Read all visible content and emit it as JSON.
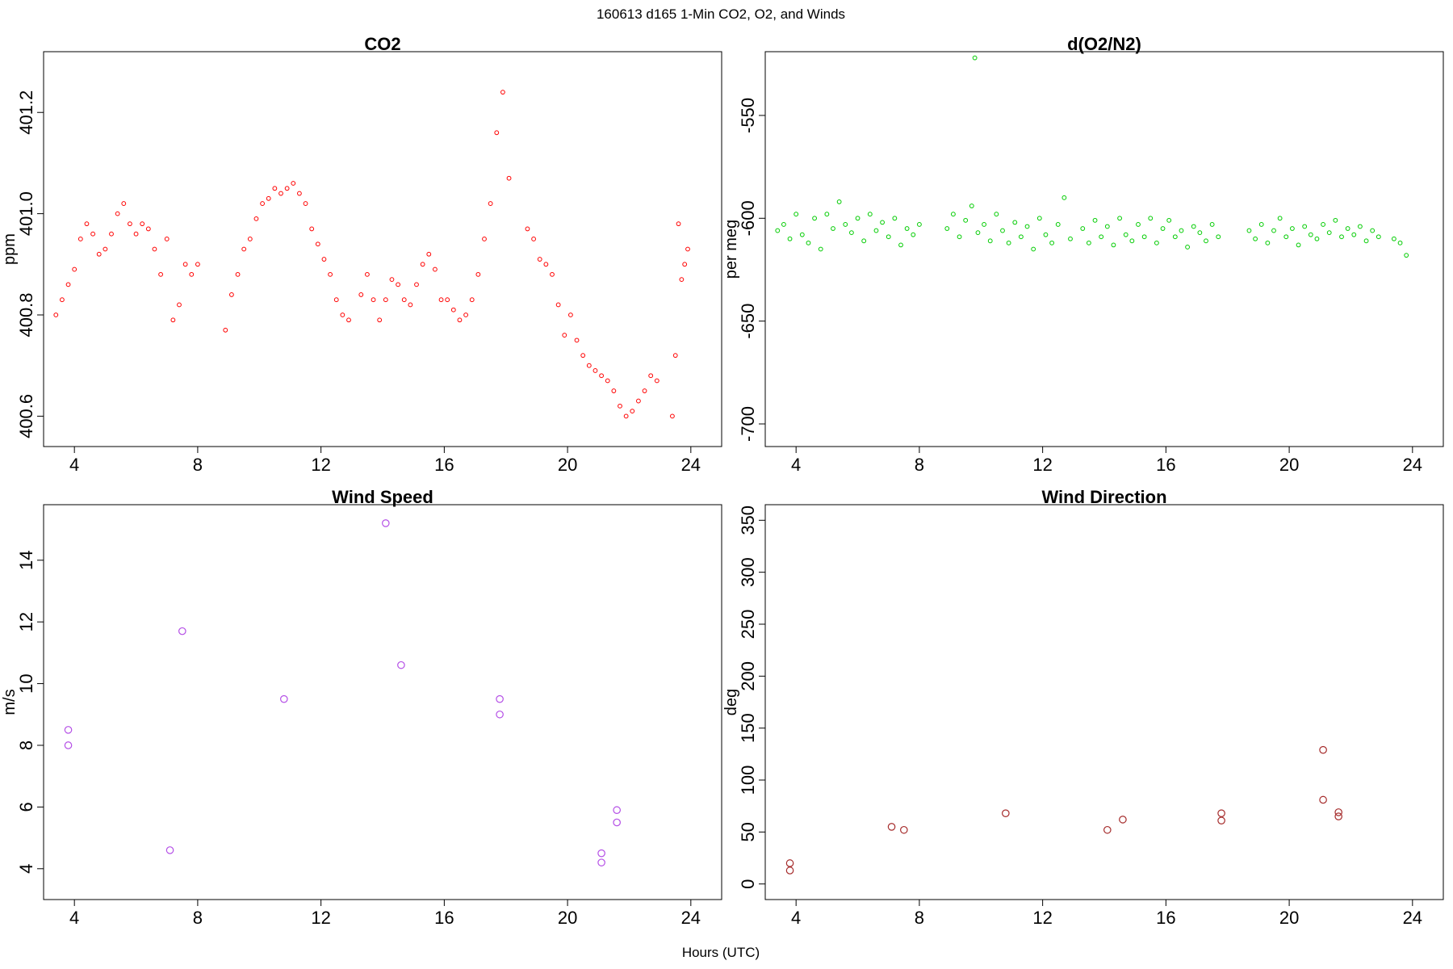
{
  "figure": {
    "title": "160613   d165   1-Min CO2, O2, and Winds",
    "xlabel": "Hours (UTC)"
  },
  "chart_data": [
    {
      "type": "scatter",
      "title": "CO2",
      "ylabel": "ppm",
      "xlabel": "",
      "xlim": [
        3.0,
        25.0
      ],
      "ylim": [
        400.54,
        401.32
      ],
      "xticks": [
        4,
        8,
        12,
        16,
        20,
        24
      ],
      "yticks": [
        400.6,
        400.8,
        401.0,
        401.2
      ],
      "yticklabels": [
        "400.6",
        "400.8",
        "401.0",
        "401.2"
      ],
      "marker_color": "#ff0000",
      "grid": false,
      "legend": "none",
      "series": [
        {
          "x": [
            3.4,
            3.6,
            3.8,
            4.0,
            4.2,
            4.4,
            4.6,
            4.8,
            5.0,
            5.2,
            5.4,
            5.6,
            5.8,
            6.0,
            6.2,
            6.4,
            6.6,
            6.8,
            7.0,
            7.2,
            7.4,
            7.6,
            7.8,
            8.0,
            8.9,
            9.1,
            9.3,
            9.5,
            9.7,
            9.9,
            10.1,
            10.3,
            10.5,
            10.7,
            10.9,
            11.1,
            11.3,
            11.5,
            11.7,
            11.9,
            12.1,
            12.3,
            12.5,
            12.7,
            12.9,
            13.3,
            13.5,
            13.7,
            13.9,
            14.1,
            14.3,
            14.5,
            14.7,
            14.9,
            15.1,
            15.3,
            15.5,
            15.7,
            15.9,
            16.1,
            16.3,
            16.5,
            16.7,
            16.9,
            17.1,
            17.3,
            17.5,
            17.7,
            17.9,
            18.1,
            18.7,
            18.9,
            19.1,
            19.3,
            19.5,
            19.7,
            19.9,
            20.1,
            20.3,
            20.5,
            20.7,
            20.9,
            21.1,
            21.3,
            21.5,
            21.7,
            21.9,
            22.1,
            22.3,
            22.5,
            22.7,
            22.9,
            23.4,
            23.5,
            23.6,
            23.7,
            23.8,
            23.9
          ],
          "y": [
            400.8,
            400.83,
            400.86,
            400.89,
            400.95,
            400.98,
            400.96,
            400.92,
            400.93,
            400.96,
            401.0,
            401.02,
            400.98,
            400.96,
            400.98,
            400.97,
            400.93,
            400.88,
            400.95,
            400.79,
            400.82,
            400.9,
            400.88,
            400.9,
            400.77,
            400.84,
            400.88,
            400.93,
            400.95,
            400.99,
            401.02,
            401.03,
            401.05,
            401.04,
            401.05,
            401.06,
            401.04,
            401.02,
            400.97,
            400.94,
            400.91,
            400.88,
            400.83,
            400.8,
            400.79,
            400.84,
            400.88,
            400.83,
            400.79,
            400.83,
            400.87,
            400.86,
            400.83,
            400.82,
            400.86,
            400.9,
            400.92,
            400.89,
            400.83,
            400.83,
            400.81,
            400.79,
            400.8,
            400.83,
            400.88,
            400.95,
            401.02,
            401.16,
            401.24,
            401.07,
            400.97,
            400.95,
            400.91,
            400.9,
            400.88,
            400.82,
            400.76,
            400.8,
            400.75,
            400.72,
            400.7,
            400.69,
            400.68,
            400.67,
            400.65,
            400.62,
            400.6,
            400.61,
            400.63,
            400.65,
            400.68,
            400.67,
            400.6,
            400.72,
            400.98,
            400.87,
            400.9,
            400.93
          ]
        }
      ]
    },
    {
      "type": "scatter",
      "title": "d(O2/N2)",
      "ylabel": "per meg",
      "xlabel": "",
      "xlim": [
        3.0,
        25.0
      ],
      "ylim": [
        -711,
        -519
      ],
      "xticks": [
        4,
        8,
        12,
        16,
        20,
        24
      ],
      "yticks": [
        -700,
        -650,
        -600,
        -550
      ],
      "yticklabels": [
        "-700",
        "-650",
        "-600",
        "-550"
      ],
      "marker_color": "#00cc00",
      "grid": false,
      "legend": "none",
      "series": [
        {
          "x": [
            3.4,
            3.6,
            3.8,
            4.0,
            4.2,
            4.4,
            4.6,
            4.8,
            5.0,
            5.2,
            5.4,
            5.6,
            5.8,
            6.0,
            6.2,
            6.4,
            6.6,
            6.8,
            7.0,
            7.2,
            7.4,
            7.6,
            7.8,
            8.0,
            8.9,
            9.1,
            9.3,
            9.5,
            9.7,
            9.8,
            9.9,
            10.1,
            10.3,
            10.5,
            10.7,
            10.9,
            11.1,
            11.3,
            11.5,
            11.7,
            11.9,
            12.1,
            12.3,
            12.5,
            12.7,
            12.9,
            13.3,
            13.5,
            13.7,
            13.9,
            14.1,
            14.3,
            14.5,
            14.7,
            14.9,
            15.1,
            15.3,
            15.5,
            15.7,
            15.9,
            16.1,
            16.3,
            16.5,
            16.7,
            16.9,
            17.1,
            17.3,
            17.5,
            17.7,
            18.7,
            18.9,
            19.1,
            19.3,
            19.5,
            19.7,
            19.9,
            20.1,
            20.3,
            20.5,
            20.7,
            20.9,
            21.1,
            21.3,
            21.5,
            21.7,
            21.9,
            22.1,
            22.3,
            22.5,
            22.7,
            22.9,
            23.4,
            23.6,
            23.8
          ],
          "y": [
            -606,
            -603,
            -610,
            -598,
            -608,
            -612,
            -600,
            -615,
            -598,
            -605,
            -592,
            -603,
            -607,
            -600,
            -611,
            -598,
            -606,
            -602,
            -609,
            -600,
            -613,
            -605,
            -608,
            -603,
            -605,
            -598,
            -609,
            -601,
            -594,
            -522,
            -607,
            -603,
            -611,
            -598,
            -606,
            -612,
            -602,
            -609,
            -604,
            -615,
            -600,
            -608,
            -612,
            -603,
            -590,
            -610,
            -605,
            -612,
            -601,
            -609,
            -604,
            -613,
            -600,
            -608,
            -611,
            -603,
            -609,
            -600,
            -612,
            -605,
            -601,
            -609,
            -606,
            -614,
            -604,
            -607,
            -611,
            -603,
            -609,
            -606,
            -610,
            -603,
            -612,
            -606,
            -600,
            -609,
            -605,
            -613,
            -604,
            -608,
            -610,
            -603,
            -607,
            -601,
            -609,
            -605,
            -608,
            -604,
            -611,
            -606,
            -609,
            -610,
            -612,
            -618
          ]
        }
      ]
    },
    {
      "type": "scatter",
      "title": "Wind Speed",
      "ylabel": "m/s",
      "xlabel": "",
      "xlim": [
        3.0,
        25.0
      ],
      "ylim": [
        3.0,
        15.8
      ],
      "xticks": [
        4,
        8,
        12,
        16,
        20,
        24
      ],
      "yticks": [
        4,
        6,
        8,
        10,
        12,
        14
      ],
      "yticklabels": [
        "4",
        "6",
        "8",
        "10",
        "12",
        "14"
      ],
      "marker_color": "#b44ee6",
      "grid": false,
      "legend": "none",
      "series": [
        {
          "x": [
            3.8,
            3.8,
            7.1,
            7.5,
            10.8,
            14.1,
            14.6,
            17.8,
            17.8,
            21.1,
            21.1,
            21.6,
            21.6
          ],
          "y": [
            8.5,
            8.0,
            4.6,
            11.7,
            9.5,
            15.2,
            10.6,
            9.5,
            9.0,
            4.5,
            4.2,
            5.9,
            5.5
          ]
        }
      ]
    },
    {
      "type": "scatter",
      "title": "Wind Direction",
      "ylabel": "deg",
      "xlabel": "",
      "xlim": [
        3.0,
        25.0
      ],
      "ylim": [
        -15,
        365
      ],
      "xticks": [
        4,
        8,
        12,
        16,
        20,
        24
      ],
      "yticks": [
        0,
        50,
        100,
        150,
        200,
        250,
        300,
        350
      ],
      "yticklabels": [
        "0",
        "50",
        "100",
        "150",
        "200",
        "250",
        "300",
        "350"
      ],
      "marker_color": "#a52a2a",
      "grid": false,
      "legend": "none",
      "series": [
        {
          "x": [
            3.8,
            3.8,
            7.1,
            7.5,
            10.8,
            14.1,
            14.6,
            17.8,
            17.8,
            21.1,
            21.1,
            21.6,
            21.6
          ],
          "y": [
            20,
            13,
            55,
            52,
            68,
            52,
            62,
            68,
            61,
            129,
            81,
            69,
            65
          ]
        }
      ]
    }
  ]
}
